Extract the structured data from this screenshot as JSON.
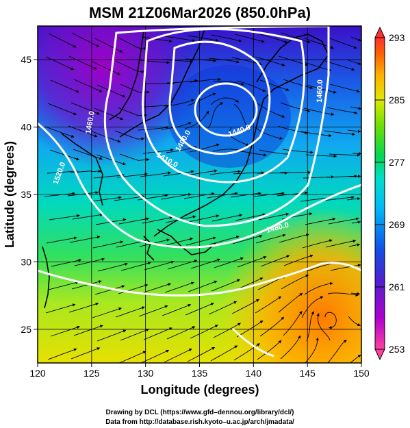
{
  "header": {
    "title": "MSM 21Z06Mar2026 (850.0hPa)"
  },
  "axes": {
    "xlabel": "Longitude (degrees)",
    "ylabel": "Latitude  (degrees)",
    "x_ticks": [
      "120",
      "125",
      "130",
      "135",
      "140",
      "145",
      "150"
    ],
    "y_ticks": [
      "25",
      "30",
      "35",
      "40",
      "45"
    ],
    "x_range": [
      120,
      150
    ],
    "y_range": [
      22.5,
      47.5
    ]
  },
  "colorbar": {
    "ticks": [
      "293",
      "285",
      "277",
      "269",
      "261",
      "253"
    ],
    "range": [
      253,
      293
    ],
    "colors": [
      "#ff2a7a",
      "#b000d0",
      "#5000c8",
      "#1040e0",
      "#00a8ff",
      "#00e0d0",
      "#00d060",
      "#60e000",
      "#d8e800",
      "#ffb000",
      "#ff7000",
      "#ff3030"
    ]
  },
  "contours": {
    "labels": [
      "1460.0",
      "1520.0",
      "1400.0",
      "1410.0",
      "1440.0",
      "1460.0",
      "1480.0"
    ]
  },
  "credits": {
    "line1": "Drawing by DCL (https://www.gfd–dennou.org/library/dcl/)",
    "line2": "Data from http://database.rish.kyoto–u.ac.jp/arch/jmadata/"
  }
}
